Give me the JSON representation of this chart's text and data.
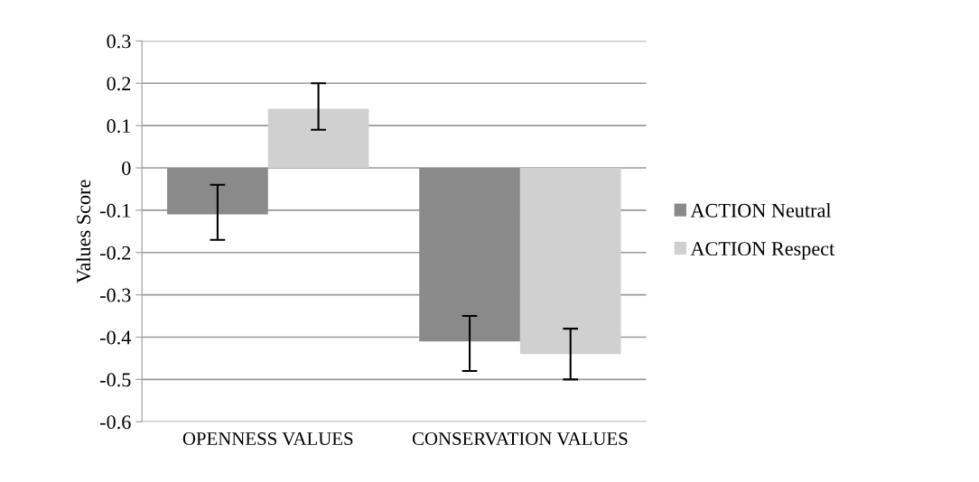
{
  "chart_data": {
    "type": "bar",
    "ylabel": "Values Score",
    "categories": [
      "OPENNESS VALUES",
      "CONSERVATION VALUES"
    ],
    "series": [
      {
        "name": "ACTION Neutral",
        "color": "#8a8a8a",
        "values": [
          -0.11,
          -0.41
        ],
        "errors": [
          [
            -0.17,
            -0.04
          ],
          [
            -0.48,
            -0.35
          ]
        ]
      },
      {
        "name": "ACTION Respect",
        "color": "#d0d0d0",
        "values": [
          0.14,
          -0.44
        ],
        "errors": [
          [
            0.09,
            0.2
          ],
          [
            -0.5,
            -0.38
          ]
        ]
      }
    ],
    "ylim": [
      -0.6,
      0.3
    ],
    "yticks": [
      -0.6,
      -0.5,
      -0.4,
      -0.3,
      -0.2,
      -0.1,
      0,
      0.1,
      0.2,
      0.3
    ],
    "grid": "y",
    "legend": "right"
  }
}
